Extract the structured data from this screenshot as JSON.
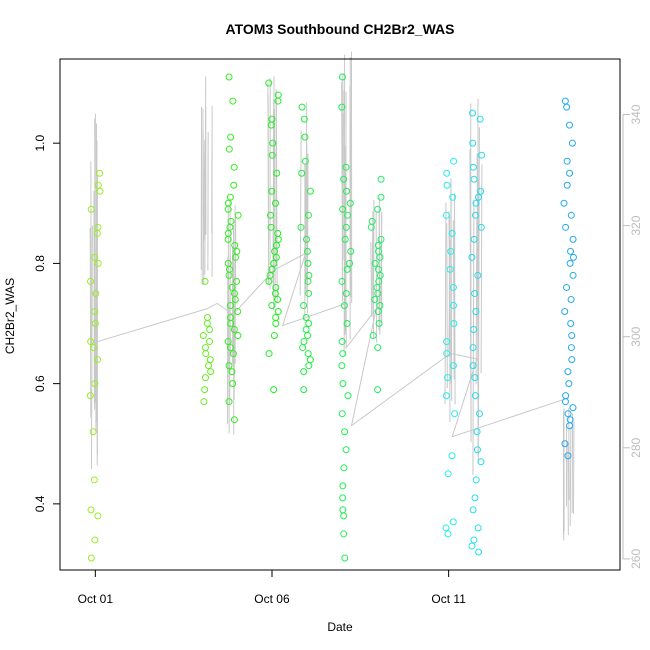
{
  "chart_data": {
    "type": "scatter",
    "title": "ATOM3 Southbound CH2Br2_WAS",
    "xlabel": "Date",
    "ylabel": "CH2Br2_WAS",
    "x_tick_labels": [
      "Oct 01",
      "Oct 06",
      "Oct 11"
    ],
    "x_tick_days": [
      1,
      6,
      11
    ],
    "xlim_days": [
      0.0,
      15.85
    ],
    "ylim": [
      0.29,
      1.14
    ],
    "y_ticks": [
      0.4,
      0.6,
      0.8,
      1.0
    ],
    "y_tick_labels": [
      "0.4",
      "0.6",
      "0.8",
      "1.0"
    ],
    "y2_ticks": [
      260,
      280,
      300,
      320,
      340
    ],
    "y2_tick_labels": [
      "260",
      "280",
      "300",
      "320",
      "340"
    ],
    "y2lim": [
      258,
      350
    ],
    "grid": false,
    "legend": "none",
    "marker": "open-circle",
    "secondary_line_color": "#c8c8c8",
    "clusters": [
      {
        "day": 1.0,
        "color": "#99ee22",
        "values": [
          0.31,
          0.34,
          0.38,
          0.39,
          0.44,
          0.52,
          0.58,
          0.6,
          0.64,
          0.66,
          0.67,
          0.7,
          0.72,
          0.75,
          0.77,
          0.8,
          0.81,
          0.85,
          0.86,
          0.89,
          0.92,
          0.93,
          0.95
        ]
      },
      {
        "day": 4.15,
        "color": "#66ee22",
        "values": [
          0.57,
          0.59,
          0.61,
          0.62,
          0.63,
          0.64,
          0.65,
          0.66,
          0.67,
          0.68,
          0.69,
          0.7,
          0.71,
          0.77
        ]
      },
      {
        "day": 4.9,
        "color": "#33ee22",
        "values": [
          0.54,
          0.57,
          0.6,
          0.62,
          0.63,
          0.65,
          0.66,
          0.67,
          0.68,
          0.69,
          0.7,
          0.71,
          0.72,
          0.73,
          0.74,
          0.75,
          0.76,
          0.77,
          0.78,
          0.79,
          0.8,
          0.81,
          0.82,
          0.83,
          0.84,
          0.85,
          0.86,
          0.87,
          0.88,
          0.89,
          0.9,
          0.91,
          0.93,
          0.96,
          0.99,
          1.01,
          1.07,
          1.11
        ]
      },
      {
        "day": 6.05,
        "color": "#22ee22",
        "values": [
          0.59,
          0.65,
          0.68,
          0.7,
          0.71,
          0.72,
          0.73,
          0.74,
          0.75,
          0.76,
          0.77,
          0.78,
          0.79,
          0.8,
          0.81,
          0.82,
          0.83,
          0.84,
          0.85,
          0.86,
          0.88,
          0.9,
          0.92,
          0.95,
          0.98,
          1.0,
          1.03,
          1.04,
          1.07,
          1.08,
          1.1
        ]
      },
      {
        "day": 6.95,
        "color": "#22ee44",
        "values": [
          0.59,
          0.62,
          0.63,
          0.64,
          0.65,
          0.66,
          0.67,
          0.68,
          0.69,
          0.7,
          0.71,
          0.73,
          0.75,
          0.77,
          0.78,
          0.8,
          0.82,
          0.84,
          0.86,
          0.88,
          0.92,
          0.95,
          0.97,
          1.01,
          1.04,
          1.06
        ]
      },
      {
        "day": 8.1,
        "color": "#22ee55",
        "values": [
          0.31,
          0.35,
          0.38,
          0.39,
          0.41,
          0.43,
          0.46,
          0.49,
          0.52,
          0.55,
          0.58,
          0.6,
          0.63,
          0.65,
          0.67,
          0.7,
          0.73,
          0.75,
          0.77,
          0.79,
          0.8,
          0.82,
          0.84,
          0.86,
          0.88,
          0.89,
          0.9,
          0.92,
          0.94,
          0.96,
          1.06,
          1.11
        ]
      },
      {
        "day": 8.95,
        "color": "#22ee66",
        "values": [
          0.59,
          0.66,
          0.68,
          0.7,
          0.72,
          0.73,
          0.74,
          0.75,
          0.76,
          0.77,
          0.78,
          0.79,
          0.8,
          0.81,
          0.82,
          0.83,
          0.84,
          0.86,
          0.87,
          0.89,
          0.91,
          0.94
        ]
      },
      {
        "day": 11.05,
        "color": "#22eeee",
        "values": [
          0.35,
          0.36,
          0.37,
          0.45,
          0.48,
          0.55,
          0.58,
          0.61,
          0.63,
          0.65,
          0.67,
          0.7,
          0.73,
          0.76,
          0.79,
          0.82,
          0.85,
          0.88,
          0.91,
          0.93,
          0.95,
          0.97
        ]
      },
      {
        "day": 11.8,
        "color": "#22ddee",
        "values": [
          0.32,
          0.33,
          0.34,
          0.36,
          0.39,
          0.41,
          0.44,
          0.47,
          0.49,
          0.52,
          0.55,
          0.58,
          0.61,
          0.63,
          0.66,
          0.69,
          0.72,
          0.75,
          0.78,
          0.81,
          0.84,
          0.86,
          0.88,
          0.9,
          0.91,
          0.92,
          0.94,
          0.96,
          0.98,
          1.0,
          1.04,
          1.05
        ]
      },
      {
        "day": 14.4,
        "color": "#22aaee",
        "values": [
          0.48,
          0.5,
          0.53,
          0.54,
          0.55,
          0.56,
          0.57,
          0.58,
          0.6,
          0.62,
          0.64,
          0.66,
          0.68,
          0.7,
          0.72,
          0.74,
          0.76,
          0.78,
          0.8,
          0.81,
          0.82,
          0.84,
          0.86,
          0.88,
          0.9,
          0.93,
          0.95,
          0.97,
          1.0,
          1.03,
          1.06,
          1.07
        ]
      }
    ],
    "secondary_trace": [
      {
        "day": 1.0,
        "y2": 299
      },
      {
        "day": 4.15,
        "y2": 305
      },
      {
        "day": 4.45,
        "y2": 306
      },
      {
        "day": 4.9,
        "y2": 304
      },
      {
        "day": 6.05,
        "y2": 312
      },
      {
        "day": 6.95,
        "y2": 315
      },
      {
        "day": 6.3,
        "y2": 302
      },
      {
        "day": 8.1,
        "y2": 306
      },
      {
        "day": 8.1,
        "y2": 298
      },
      {
        "day": 8.95,
        "y2": 305
      },
      {
        "day": 8.25,
        "y2": 284
      },
      {
        "day": 11.05,
        "y2": 297
      },
      {
        "day": 11.8,
        "y2": 296
      },
      {
        "day": 11.1,
        "y2": 282
      },
      {
        "day": 14.4,
        "y2": 289
      }
    ],
    "secondary_spikes": [
      {
        "day": 1.0,
        "min": 275,
        "max": 342
      },
      {
        "day": 4.15,
        "min": 306,
        "max": 348
      },
      {
        "day": 4.9,
        "min": 282,
        "max": 325
      },
      {
        "day": 6.05,
        "min": 304,
        "max": 347
      },
      {
        "day": 6.95,
        "min": 302,
        "max": 344
      },
      {
        "day": 8.1,
        "min": 296,
        "max": 352
      },
      {
        "day": 8.95,
        "min": 296,
        "max": 326
      },
      {
        "day": 11.05,
        "min": 282,
        "max": 330
      },
      {
        "day": 11.8,
        "min": 275,
        "max": 345
      },
      {
        "day": 14.4,
        "min": 262,
        "max": 288
      }
    ]
  }
}
